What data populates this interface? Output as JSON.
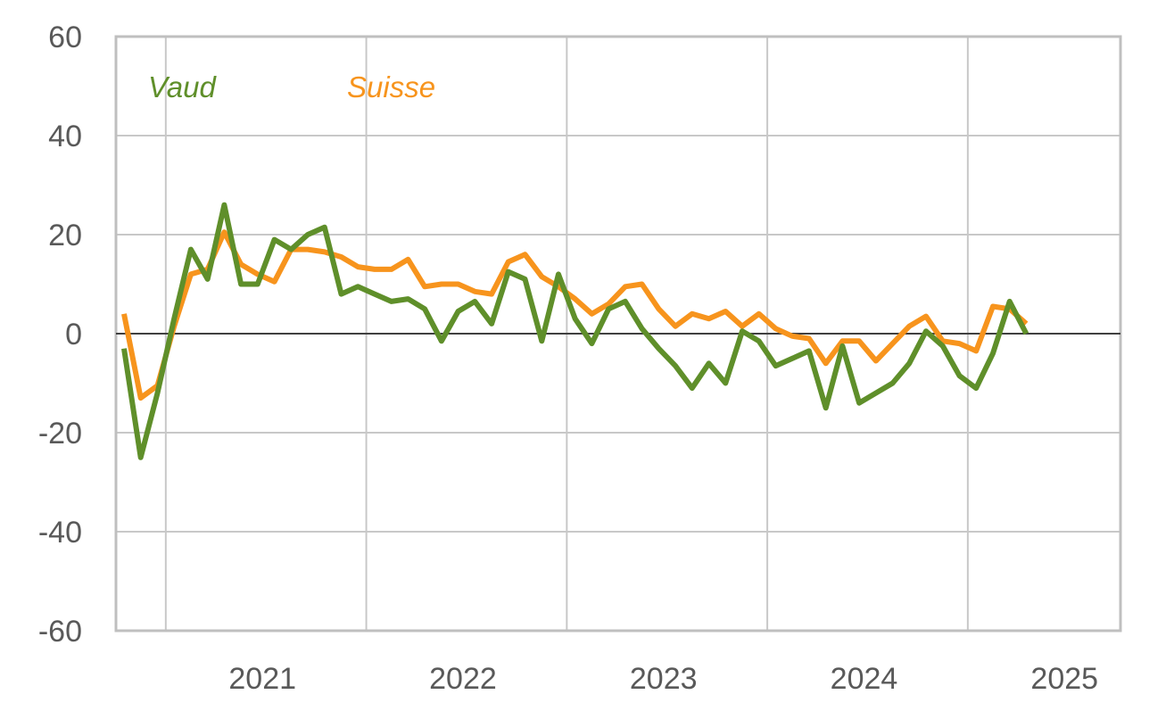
{
  "chart_data": {
    "type": "line",
    "title": "",
    "xlabel": "",
    "ylabel": "",
    "ylim": [
      -60,
      60
    ],
    "yticks": [
      60,
      40,
      20,
      0,
      -20,
      -40,
      -60
    ],
    "ytick_labels": [
      "60",
      "40",
      "20",
      "0",
      "-20",
      "-40",
      "-60"
    ],
    "xtick_labels": [
      "2021",
      "2022",
      "2023",
      "2024",
      "2025"
    ],
    "grid": true,
    "legend": {
      "placement": "top-left",
      "style": "inline-text"
    },
    "x_start": "2020-10",
    "x_step": "month",
    "series": [
      {
        "name": "Vaud",
        "color": "#5f8f2a",
        "values": [
          -3,
          -25,
          -12,
          3,
          17,
          11,
          26,
          10,
          10,
          19,
          17,
          20,
          21.5,
          8,
          9.5,
          8,
          6.5,
          7,
          5,
          -1.5,
          4.5,
          6.5,
          2,
          12.5,
          11,
          -1.5,
          12,
          3,
          -2,
          5,
          6.5,
          1,
          -3,
          -6.5,
          -11,
          -6,
          -10,
          0.5,
          -1.5,
          -6.5,
          -5,
          -3.5,
          -15,
          -2.5,
          -14,
          -12,
          -10,
          -6,
          0.5,
          -2.5,
          -8.5,
          -11,
          -4,
          6.5,
          0
        ]
      },
      {
        "name": "Suisse",
        "color": "#f7941d",
        "values": [
          4,
          -13,
          -10.5,
          1.5,
          12,
          13,
          20.5,
          14,
          12,
          10.5,
          17,
          17,
          16.5,
          15.5,
          13.5,
          13,
          13,
          15,
          9.5,
          10,
          10,
          8.5,
          8,
          14.5,
          16,
          11.5,
          9.5,
          7,
          4,
          6,
          9.5,
          10,
          5,
          1.5,
          4,
          3,
          4.5,
          1.5,
          4,
          1,
          -0.5,
          -1,
          -6,
          -1.5,
          -1.5,
          -5.5,
          -2,
          1.5,
          3.5,
          -1.5,
          -2,
          -3.5,
          5.5,
          5,
          2
        ]
      }
    ]
  }
}
